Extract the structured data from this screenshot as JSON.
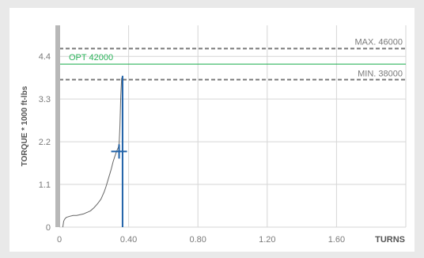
{
  "chart_data": {
    "type": "line",
    "xlabel": "TURNS",
    "ylabel": "TORQUE * 1000 ft-lbs",
    "xlim": [
      0,
      2.0
    ],
    "ylim": [
      0,
      5.2
    ],
    "x_ticks": [
      {
        "value": 0,
        "label": "0"
      },
      {
        "value": 0.4,
        "label": "0.40"
      },
      {
        "value": 0.8,
        "label": "0.80"
      },
      {
        "value": 1.2,
        "label": "1.20"
      },
      {
        "value": 1.6,
        "label": "1.60"
      }
    ],
    "y_ticks": [
      {
        "value": 0,
        "label": "0"
      },
      {
        "value": 1.1,
        "label": "1.1"
      },
      {
        "value": 2.2,
        "label": "2.2"
      },
      {
        "value": 3.3,
        "label": "3.3"
      },
      {
        "value": 4.4,
        "label": "4.4"
      }
    ],
    "grid": true,
    "reference_lines": [
      {
        "label": "MAX. 46000",
        "value": 4.6,
        "style": "dashed",
        "color": "#7a7a7a",
        "label_side": "right"
      },
      {
        "label": "OPT 42000",
        "value": 4.2,
        "style": "solid",
        "color": "#2bb35a",
        "label_side": "left"
      },
      {
        "label": "MIN. 38000",
        "value": 3.8,
        "style": "dashed",
        "color": "#7a7a7a",
        "label_side": "right"
      }
    ],
    "series": [
      {
        "color": "#666666",
        "x": [
          0.02,
          0.025,
          0.03,
          0.04,
          0.06,
          0.08,
          0.1,
          0.12,
          0.14,
          0.15,
          0.16,
          0.17,
          0.18,
          0.2,
          0.22,
          0.24,
          0.26,
          0.27,
          0.28,
          0.29,
          0.3,
          0.31,
          0.32,
          0.33,
          0.34,
          0.345,
          0.35,
          0.355,
          0.36
        ],
        "y": [
          0.0,
          0.15,
          0.2,
          0.25,
          0.28,
          0.3,
          0.3,
          0.32,
          0.34,
          0.36,
          0.38,
          0.4,
          0.42,
          0.5,
          0.6,
          0.72,
          0.92,
          1.05,
          1.2,
          1.35,
          1.5,
          1.68,
          1.82,
          1.95,
          2.05,
          2.15,
          2.6,
          3.4,
          3.85
        ]
      }
    ],
    "markers": [
      {
        "type": "vertical",
        "x": 0.365,
        "y_from": 0.0,
        "y_to": 3.9,
        "color": "#2062a8"
      },
      {
        "type": "cross",
        "x": 0.345,
        "y": 1.95,
        "color": "#2062a8"
      }
    ]
  }
}
